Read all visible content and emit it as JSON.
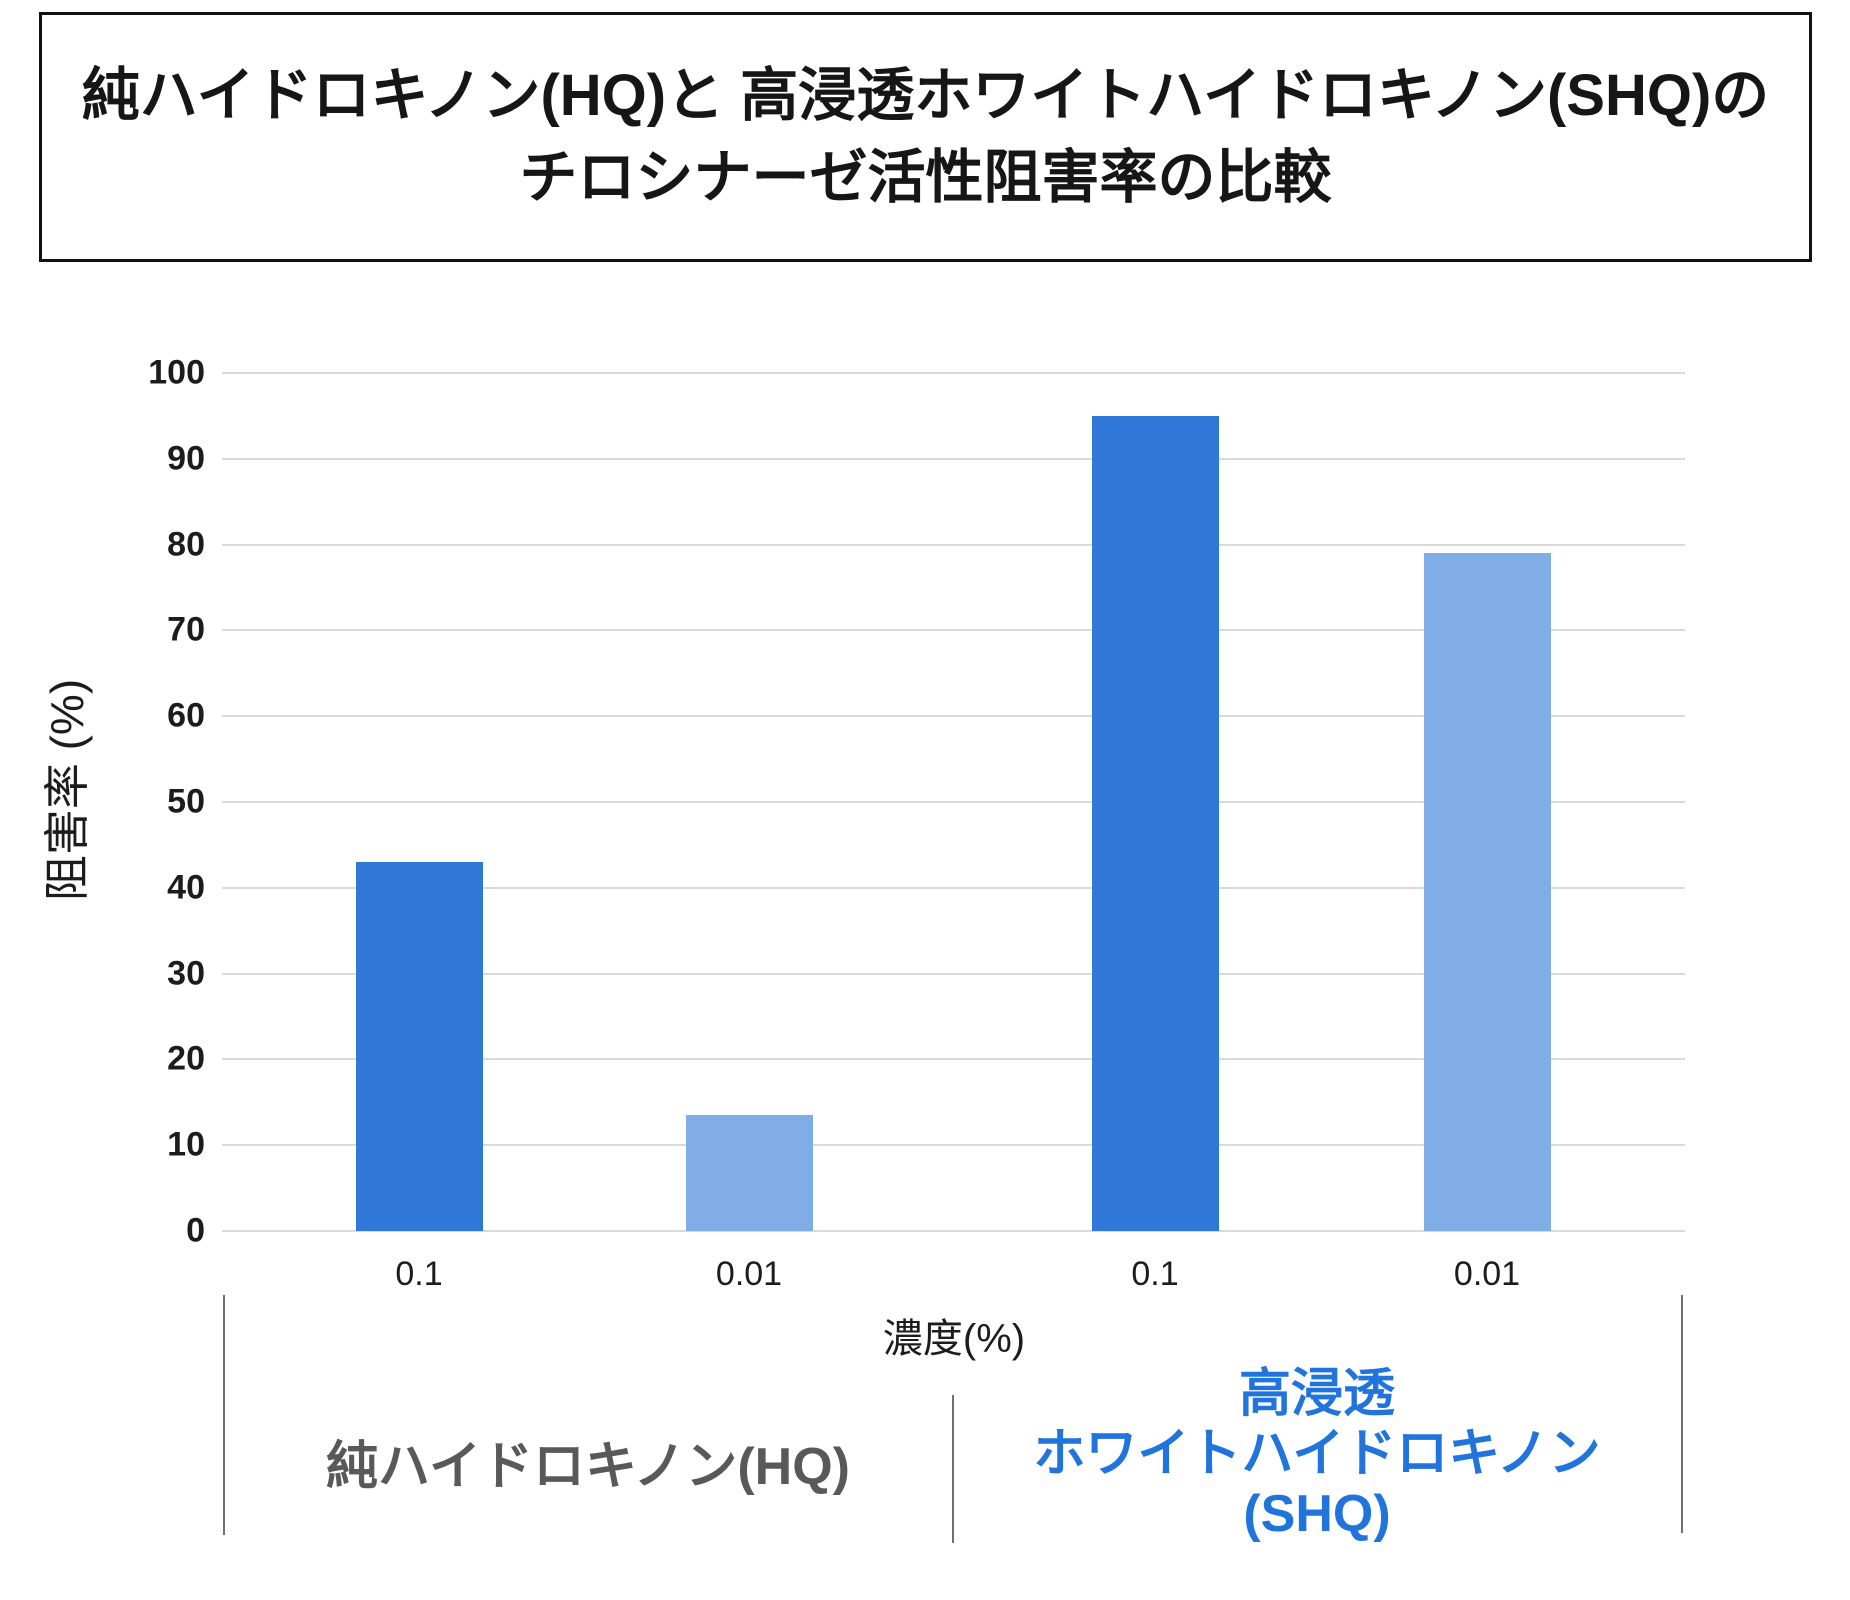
{
  "title": {
    "line1": "純ハイドロキノン(HQ)と 高浸透ホワイトハイドロキノン(SHQ)の",
    "line2": "チロシナーゼ活性阻害率の比較"
  },
  "chart_data": {
    "type": "bar",
    "title": "純ハイドロキノン(HQ)と 高浸透ホワイトハイドロキノン(SHQ)の チロシナーゼ活性阻害率の比較",
    "ylabel": "阻害率 (%)",
    "xlabel": "濃度(%)",
    "ylim": [
      0,
      100
    ],
    "yticks": [
      0,
      10,
      20,
      30,
      40,
      50,
      60,
      70,
      80,
      90,
      100
    ],
    "grid": true,
    "legend": "none",
    "categories": [
      "0.1",
      "0.01",
      "0.1",
      "0.01"
    ],
    "values": [
      43,
      13.5,
      95,
      79
    ],
    "bars": [
      {
        "group": "純ハイドロキノン(HQ)",
        "category": "0.1",
        "value": 43,
        "shade": "dark"
      },
      {
        "group": "純ハイドロキノン(HQ)",
        "category": "0.01",
        "value": 13.5,
        "shade": "light"
      },
      {
        "group": "高浸透ホワイトハイドロキノン(SHQ)",
        "category": "0.1",
        "value": 95,
        "shade": "dark"
      },
      {
        "group": "高浸透ホワイトハイドロキノン(SHQ)",
        "category": "0.01",
        "value": 79,
        "shade": "light"
      }
    ],
    "group_labels": [
      {
        "text": "純ハイドロキノン(HQ)",
        "color": "#595959"
      },
      {
        "lines": [
          "高浸透",
          "ホワイトハイドロキノン",
          "(SHQ)"
        ],
        "color": "#2074DB"
      }
    ],
    "colors": {
      "bar_dark": "#2F78D8",
      "bar_light": "#81ADE6",
      "grid": "#D9D9D9",
      "text": "#1C1C1C",
      "group_label_gray": "#595959",
      "group_label_blue": "#2074DB",
      "separator": "#707070"
    }
  }
}
